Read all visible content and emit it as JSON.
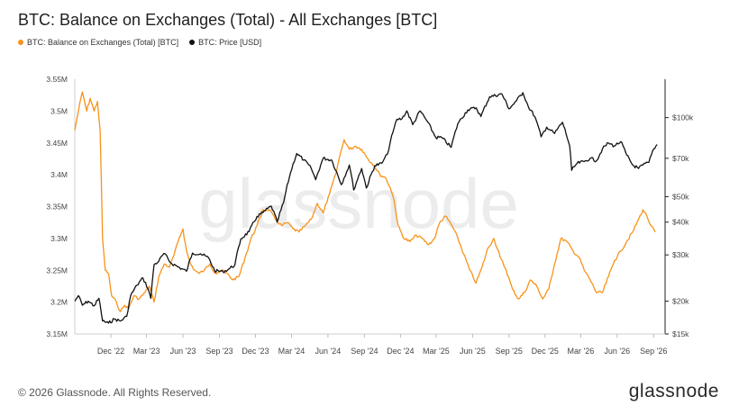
{
  "header": {
    "title": "BTC: Balance on Exchanges (Total) - All Exchanges [BTC]"
  },
  "legend": [
    {
      "label": "BTC: Balance on Exchanges (Total) [BTC]",
      "color": "#f7931a"
    },
    {
      "label": "BTC: Price [USD]",
      "color": "#111111"
    }
  ],
  "footer": {
    "copyright": "© 2026 Glassnode. All Rights Reserved.",
    "logo": "glassnode"
  },
  "watermark": "glassnode",
  "chart_data": {
    "type": "line",
    "x_ticks": [
      "Dec '22",
      "Mar '23",
      "Jun '23",
      "Sep '23",
      "Dec '23",
      "Mar '24",
      "Jun '24",
      "Sep '24",
      "Dec '24",
      "Mar '25",
      "Jun '25",
      "Sep '25",
      "Dec '25",
      "Mar '26",
      "Jun '26",
      "Sep '26"
    ],
    "x_range": [
      "2022-09",
      "2026-09"
    ],
    "y_left": {
      "ticks": [
        "3.15M",
        "3.2M",
        "3.25M",
        "3.3M",
        "3.35M",
        "3.4M",
        "3.45M",
        "3.5M",
        "3.55M"
      ],
      "range": [
        3150000,
        3550000
      ]
    },
    "y_right": {
      "scale": "log",
      "ticks": [
        "$15k",
        "$20k",
        "$30k",
        "$40k",
        "$50k",
        "$70k",
        "$100k"
      ],
      "tick_values": [
        15000,
        20000,
        30000,
        40000,
        50000,
        70000,
        100000
      ],
      "range": [
        15000,
        140000
      ]
    },
    "grid": false,
    "legend_position": "top-left",
    "series": [
      {
        "name": "BTC: Balance on Exchanges (Total) [BTC]",
        "axis": "left",
        "color": "#f7931a",
        "points": [
          [
            "2022-09-01",
            3470000
          ],
          [
            "2022-09-10",
            3500000
          ],
          [
            "2022-09-20",
            3530000
          ],
          [
            "2022-10-01",
            3500000
          ],
          [
            "2022-10-10",
            3520000
          ],
          [
            "2022-10-20",
            3500000
          ],
          [
            "2022-10-28",
            3515000
          ],
          [
            "2022-11-04",
            3470000
          ],
          [
            "2022-11-10",
            3300000
          ],
          [
            "2022-11-17",
            3250000
          ],
          [
            "2022-11-25",
            3245000
          ],
          [
            "2022-12-03",
            3210000
          ],
          [
            "2022-12-15",
            3200000
          ],
          [
            "2022-12-25",
            3185000
          ],
          [
            "2023-01-05",
            3195000
          ],
          [
            "2023-01-15",
            3190000
          ],
          [
            "2023-01-28",
            3210000
          ],
          [
            "2023-02-10",
            3205000
          ],
          [
            "2023-02-25",
            3215000
          ],
          [
            "2023-03-08",
            3225000
          ],
          [
            "2023-03-20",
            3200000
          ],
          [
            "2023-04-01",
            3240000
          ],
          [
            "2023-04-15",
            3260000
          ],
          [
            "2023-04-28",
            3255000
          ],
          [
            "2023-05-10",
            3275000
          ],
          [
            "2023-05-22",
            3300000
          ],
          [
            "2023-06-01",
            3315000
          ],
          [
            "2023-06-10",
            3280000
          ],
          [
            "2023-06-20",
            3260000
          ],
          [
            "2023-07-01",
            3250000
          ],
          [
            "2023-07-12",
            3245000
          ],
          [
            "2023-07-25",
            3250000
          ],
          [
            "2023-08-08",
            3260000
          ],
          [
            "2023-08-22",
            3245000
          ],
          [
            "2023-09-05",
            3250000
          ],
          [
            "2023-09-20",
            3245000
          ],
          [
            "2023-10-05",
            3235000
          ],
          [
            "2023-10-20",
            3240000
          ],
          [
            "2023-11-05",
            3270000
          ],
          [
            "2023-11-20",
            3300000
          ],
          [
            "2023-12-05",
            3320000
          ],
          [
            "2023-12-20",
            3345000
          ],
          [
            "2024-01-05",
            3345000
          ],
          [
            "2024-01-20",
            3330000
          ],
          [
            "2024-02-05",
            3320000
          ],
          [
            "2024-02-20",
            3325000
          ],
          [
            "2024-03-05",
            3315000
          ],
          [
            "2024-03-20",
            3310000
          ],
          [
            "2024-04-05",
            3320000
          ],
          [
            "2024-04-20",
            3330000
          ],
          [
            "2024-05-05",
            3355000
          ],
          [
            "2024-05-20",
            3340000
          ],
          [
            "2024-06-05",
            3370000
          ],
          [
            "2024-06-20",
            3400000
          ],
          [
            "2024-07-01",
            3430000
          ],
          [
            "2024-07-12",
            3455000
          ],
          [
            "2024-07-25",
            3440000
          ],
          [
            "2024-08-10",
            3445000
          ],
          [
            "2024-08-25",
            3440000
          ],
          [
            "2024-09-10",
            3425000
          ],
          [
            "2024-09-25",
            3415000
          ],
          [
            "2024-10-10",
            3400000
          ],
          [
            "2024-10-25",
            3395000
          ],
          [
            "2024-11-05",
            3380000
          ],
          [
            "2024-11-15",
            3360000
          ],
          [
            "2024-11-25",
            3320000
          ],
          [
            "2024-12-10",
            3300000
          ],
          [
            "2024-12-25",
            3295000
          ],
          [
            "2025-01-10",
            3305000
          ],
          [
            "2025-01-25",
            3300000
          ],
          [
            "2025-02-10",
            3290000
          ],
          [
            "2025-02-25",
            3300000
          ],
          [
            "2025-03-10",
            3325000
          ],
          [
            "2025-03-25",
            3335000
          ],
          [
            "2025-04-10",
            3320000
          ],
          [
            "2025-04-25",
            3300000
          ],
          [
            "2025-05-10",
            3275000
          ],
          [
            "2025-05-25",
            3250000
          ],
          [
            "2025-06-10",
            3230000
          ],
          [
            "2025-06-25",
            3255000
          ],
          [
            "2025-07-10",
            3285000
          ],
          [
            "2025-07-25",
            3300000
          ],
          [
            "2025-08-10",
            3270000
          ],
          [
            "2025-08-25",
            3250000
          ],
          [
            "2025-09-10",
            3220000
          ],
          [
            "2025-09-25",
            3205000
          ],
          [
            "2025-10-10",
            3215000
          ],
          [
            "2025-10-25",
            3235000
          ],
          [
            "2025-11-10",
            3225000
          ],
          [
            "2025-11-25",
            3205000
          ],
          [
            "2025-12-10",
            3220000
          ],
          [
            "2025-12-25",
            3260000
          ],
          [
            "2026-01-10",
            3300000
          ],
          [
            "2026-01-25",
            3295000
          ],
          [
            "2026-02-10",
            3280000
          ],
          [
            "2026-02-25",
            3270000
          ],
          [
            "2026-03-10",
            3250000
          ],
          [
            "2026-03-25",
            3235000
          ],
          [
            "2026-04-10",
            3215000
          ],
          [
            "2026-04-25",
            3215000
          ],
          [
            "2026-05-10",
            3240000
          ],
          [
            "2026-05-25",
            3265000
          ],
          [
            "2026-06-10",
            3280000
          ],
          [
            "2026-06-25",
            3295000
          ],
          [
            "2026-07-10",
            3310000
          ],
          [
            "2026-07-25",
            3330000
          ],
          [
            "2026-08-05",
            3345000
          ],
          [
            "2026-08-15",
            3335000
          ],
          [
            "2026-08-25",
            3320000
          ],
          [
            "2026-09-05",
            3310000
          ]
        ]
      },
      {
        "name": "BTC: Price [USD]",
        "axis": "right",
        "color": "#111111",
        "points": [
          [
            "2022-09-01",
            20000
          ],
          [
            "2022-09-10",
            21000
          ],
          [
            "2022-09-20",
            19300
          ],
          [
            "2022-10-05",
            20000
          ],
          [
            "2022-10-20",
            19200
          ],
          [
            "2022-11-01",
            20500
          ],
          [
            "2022-11-10",
            16800
          ],
          [
            "2022-11-25",
            16500
          ],
          [
            "2022-12-10",
            17100
          ],
          [
            "2022-12-25",
            16800
          ],
          [
            "2023-01-10",
            17500
          ],
          [
            "2023-01-20",
            21000
          ],
          [
            "2023-02-05",
            23000
          ],
          [
            "2023-02-20",
            24500
          ],
          [
            "2023-03-05",
            22300
          ],
          [
            "2023-03-12",
            20500
          ],
          [
            "2023-03-20",
            27500
          ],
          [
            "2023-04-01",
            28400
          ],
          [
            "2023-04-14",
            30400
          ],
          [
            "2023-05-01",
            28000
          ],
          [
            "2023-05-20",
            27000
          ],
          [
            "2023-06-10",
            26000
          ],
          [
            "2023-06-25",
            30500
          ],
          [
            "2023-07-15",
            30300
          ],
          [
            "2023-08-05",
            29200
          ],
          [
            "2023-08-20",
            26100
          ],
          [
            "2023-09-10",
            25900
          ],
          [
            "2023-09-25",
            26500
          ],
          [
            "2023-10-10",
            27500
          ],
          [
            "2023-10-25",
            34500
          ],
          [
            "2023-11-15",
            36800
          ],
          [
            "2023-12-05",
            42000
          ],
          [
            "2023-12-20",
            43500
          ],
          [
            "2024-01-10",
            46000
          ],
          [
            "2024-01-25",
            40000
          ],
          [
            "2024-02-10",
            47500
          ],
          [
            "2024-02-28",
            62000
          ],
          [
            "2024-03-14",
            73000
          ],
          [
            "2024-04-01",
            69000
          ],
          [
            "2024-04-20",
            64000
          ],
          [
            "2024-05-01",
            58000
          ],
          [
            "2024-05-20",
            70000
          ],
          [
            "2024-06-10",
            69000
          ],
          [
            "2024-07-05",
            55500
          ],
          [
            "2024-07-25",
            66000
          ],
          [
            "2024-08-05",
            53000
          ],
          [
            "2024-08-25",
            64000
          ],
          [
            "2024-09-06",
            53900
          ],
          [
            "2024-09-27",
            65500
          ],
          [
            "2024-10-15",
            67000
          ],
          [
            "2024-10-29",
            72500
          ],
          [
            "2024-11-12",
            88000
          ],
          [
            "2024-11-22",
            98500
          ],
          [
            "2024-12-05",
            99000
          ],
          [
            "2024-12-17",
            106000
          ],
          [
            "2025-01-01",
            94000
          ],
          [
            "2025-01-20",
            106000
          ],
          [
            "2025-02-05",
            97500
          ],
          [
            "2025-02-28",
            84000
          ],
          [
            "2025-03-15",
            84000
          ],
          [
            "2025-04-08",
            77000
          ],
          [
            "2025-04-25",
            95000
          ],
          [
            "2025-05-20",
            107000
          ],
          [
            "2025-06-10",
            109000
          ],
          [
            "2025-06-22",
            101000
          ],
          [
            "2025-07-14",
            120000
          ],
          [
            "2025-08-14",
            123000
          ],
          [
            "2025-09-01",
            108000
          ],
          [
            "2025-09-20",
            116000
          ],
          [
            "2025-10-06",
            124500
          ],
          [
            "2025-10-20",
            110000
          ],
          [
            "2025-11-05",
            101000
          ],
          [
            "2025-11-21",
            84500
          ],
          [
            "2025-12-05",
            92000
          ],
          [
            "2025-12-25",
            87000
          ],
          [
            "2026-01-14",
            96000
          ],
          [
            "2026-02-01",
            78000
          ],
          [
            "2026-02-06",
            63000
          ],
          [
            "2026-02-20",
            67000
          ],
          [
            "2026-03-10",
            68000
          ],
          [
            "2026-03-25",
            70000
          ],
          [
            "2026-04-10",
            68500
          ],
          [
            "2026-04-25",
            76000
          ],
          [
            "2026-05-10",
            80000
          ],
          [
            "2026-05-25",
            78000
          ],
          [
            "2026-06-10",
            81000
          ],
          [
            "2026-06-25",
            72000
          ],
          [
            "2026-07-10",
            66000
          ],
          [
            "2026-07-25",
            64000
          ],
          [
            "2026-08-05",
            66000
          ],
          [
            "2026-08-20",
            67500
          ],
          [
            "2026-09-01",
            76000
          ],
          [
            "2026-09-10",
            79000
          ]
        ]
      }
    ]
  }
}
